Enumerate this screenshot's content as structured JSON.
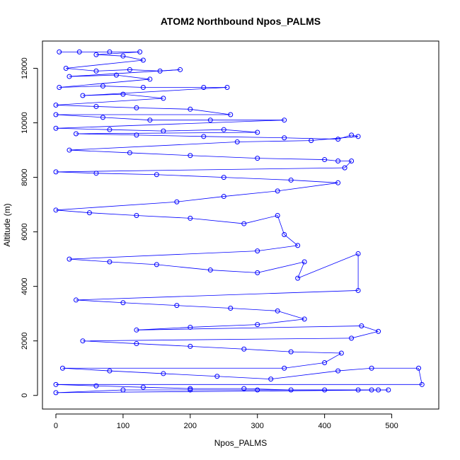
{
  "chart_data": {
    "type": "scatter",
    "title": "ATOM2 Northbound Npos_PALMS",
    "xlabel": "Npos_PALMS",
    "ylabel": "Altitude (m)",
    "xlim": [
      -20,
      570
    ],
    "ylim": [
      -500,
      13000
    ],
    "xticks": [
      0,
      100,
      200,
      300,
      400,
      500
    ],
    "yticks": [
      0,
      2000,
      4000,
      6000,
      8000,
      10000,
      12000
    ],
    "xtick_labels": [
      "0",
      "100",
      "200",
      "300",
      "400",
      "500"
    ],
    "ytick_labels": [
      "0",
      "2000",
      "4000",
      "6000",
      "8000",
      "10000",
      "12000"
    ],
    "grid": false,
    "color": "#0000ff",
    "series": [
      {
        "style": "lines+open-circles",
        "points": [
          [
            5,
            12600
          ],
          [
            35,
            12600
          ],
          [
            80,
            12600
          ],
          [
            125,
            12600
          ],
          [
            60,
            12500
          ],
          [
            100,
            12450
          ],
          [
            130,
            12300
          ],
          [
            15,
            12000
          ],
          [
            60,
            11900
          ],
          [
            110,
            11950
          ],
          [
            155,
            11900
          ],
          [
            185,
            11950
          ],
          [
            20,
            11700
          ],
          [
            90,
            11750
          ],
          [
            140,
            11600
          ],
          [
            5,
            11300
          ],
          [
            70,
            11350
          ],
          [
            130,
            11300
          ],
          [
            220,
            11300
          ],
          [
            255,
            11300
          ],
          [
            40,
            11000
          ],
          [
            100,
            11050
          ],
          [
            160,
            10900
          ],
          [
            0,
            10650
          ],
          [
            60,
            10600
          ],
          [
            120,
            10550
          ],
          [
            200,
            10500
          ],
          [
            260,
            10300
          ],
          [
            0,
            10300
          ],
          [
            70,
            10200
          ],
          [
            140,
            10100
          ],
          [
            230,
            10100
          ],
          [
            340,
            10100
          ],
          [
            0,
            9800
          ],
          [
            80,
            9750
          ],
          [
            160,
            9700
          ],
          [
            250,
            9750
          ],
          [
            300,
            9650
          ],
          [
            30,
            9600
          ],
          [
            120,
            9550
          ],
          [
            220,
            9500
          ],
          [
            340,
            9450
          ],
          [
            420,
            9400
          ],
          [
            440,
            9550
          ],
          [
            450,
            9500
          ],
          [
            380,
            9350
          ],
          [
            270,
            9300
          ],
          [
            20,
            9000
          ],
          [
            110,
            8900
          ],
          [
            200,
            8800
          ],
          [
            300,
            8700
          ],
          [
            400,
            8650
          ],
          [
            420,
            8600
          ],
          [
            440,
            8600
          ],
          [
            430,
            8350
          ],
          [
            0,
            8200
          ],
          [
            60,
            8150
          ],
          [
            150,
            8100
          ],
          [
            250,
            8000
          ],
          [
            350,
            7900
          ],
          [
            420,
            7800
          ],
          [
            330,
            7500
          ],
          [
            250,
            7300
          ],
          [
            180,
            7100
          ],
          [
            0,
            6800
          ],
          [
            50,
            6700
          ],
          [
            120,
            6600
          ],
          [
            200,
            6500
          ],
          [
            280,
            6300
          ],
          [
            330,
            6600
          ],
          [
            340,
            5900
          ],
          [
            360,
            5500
          ],
          [
            300,
            5300
          ],
          [
            20,
            5000
          ],
          [
            80,
            4900
          ],
          [
            150,
            4800
          ],
          [
            230,
            4600
          ],
          [
            300,
            4500
          ],
          [
            370,
            4900
          ],
          [
            360,
            4300
          ],
          [
            450,
            5200
          ],
          [
            450,
            3850
          ],
          [
            30,
            3500
          ],
          [
            100,
            3400
          ],
          [
            180,
            3300
          ],
          [
            260,
            3200
          ],
          [
            330,
            3100
          ],
          [
            370,
            2800
          ],
          [
            300,
            2600
          ],
          [
            200,
            2500
          ],
          [
            120,
            2400
          ],
          [
            455,
            2550
          ],
          [
            480,
            2350
          ],
          [
            440,
            2100
          ],
          [
            40,
            2000
          ],
          [
            120,
            1900
          ],
          [
            200,
            1800
          ],
          [
            280,
            1700
          ],
          [
            350,
            1600
          ],
          [
            425,
            1550
          ],
          [
            400,
            1200
          ],
          [
            340,
            1000
          ],
          [
            10,
            1000
          ],
          [
            80,
            900
          ],
          [
            160,
            800
          ],
          [
            240,
            700
          ],
          [
            320,
            600
          ],
          [
            420,
            900
          ],
          [
            470,
            1000
          ],
          [
            540,
            1000
          ],
          [
            545,
            400
          ],
          [
            0,
            400
          ],
          [
            60,
            350
          ],
          [
            130,
            300
          ],
          [
            200,
            250
          ],
          [
            280,
            250
          ],
          [
            350,
            200
          ],
          [
            400,
            200
          ],
          [
            450,
            200
          ],
          [
            480,
            200
          ],
          [
            495,
            200
          ],
          [
            0,
            100
          ],
          [
            100,
            200
          ],
          [
            200,
            200
          ],
          [
            300,
            200
          ],
          [
            470,
            200
          ]
        ]
      }
    ]
  }
}
